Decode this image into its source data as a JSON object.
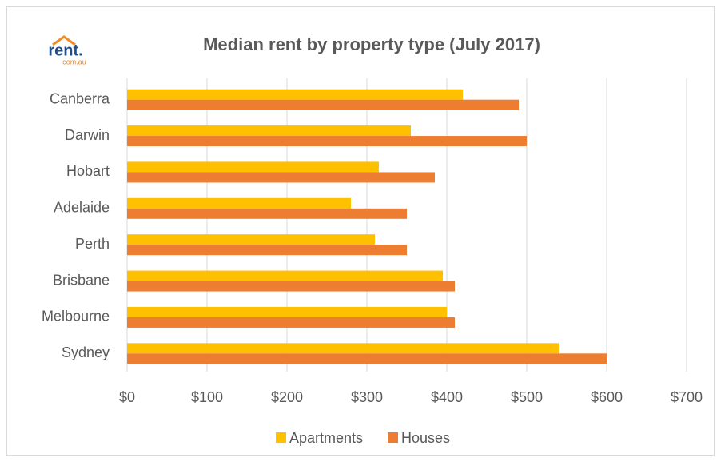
{
  "logo": {
    "text": "rent.",
    "subtext": "com.au"
  },
  "chart_data": {
    "type": "hbar",
    "title": "Median rent by property type (July 2017)",
    "categories": [
      "Canberra",
      "Darwin",
      "Hobart",
      "Adelaide",
      "Perth",
      "Brisbane",
      "Melbourne",
      "Sydney"
    ],
    "series": [
      {
        "name": "Apartments",
        "color": "#ffc000",
        "values": [
          420,
          355,
          315,
          280,
          310,
          395,
          400,
          540
        ]
      },
      {
        "name": "Houses",
        "color": "#ed7d31",
        "values": [
          490,
          500,
          385,
          350,
          350,
          410,
          410,
          600
        ]
      }
    ],
    "xlim": [
      0,
      700
    ],
    "xticks": [
      {
        "value": 0,
        "label": "$0"
      },
      {
        "value": 100,
        "label": "$100"
      },
      {
        "value": 200,
        "label": "$200"
      },
      {
        "value": 300,
        "label": "$300"
      },
      {
        "value": 400,
        "label": "$400"
      },
      {
        "value": 500,
        "label": "$500"
      },
      {
        "value": 600,
        "label": "$600"
      },
      {
        "value": 700,
        "label": "$700"
      }
    ],
    "grid": true,
    "legend": "bottom"
  }
}
